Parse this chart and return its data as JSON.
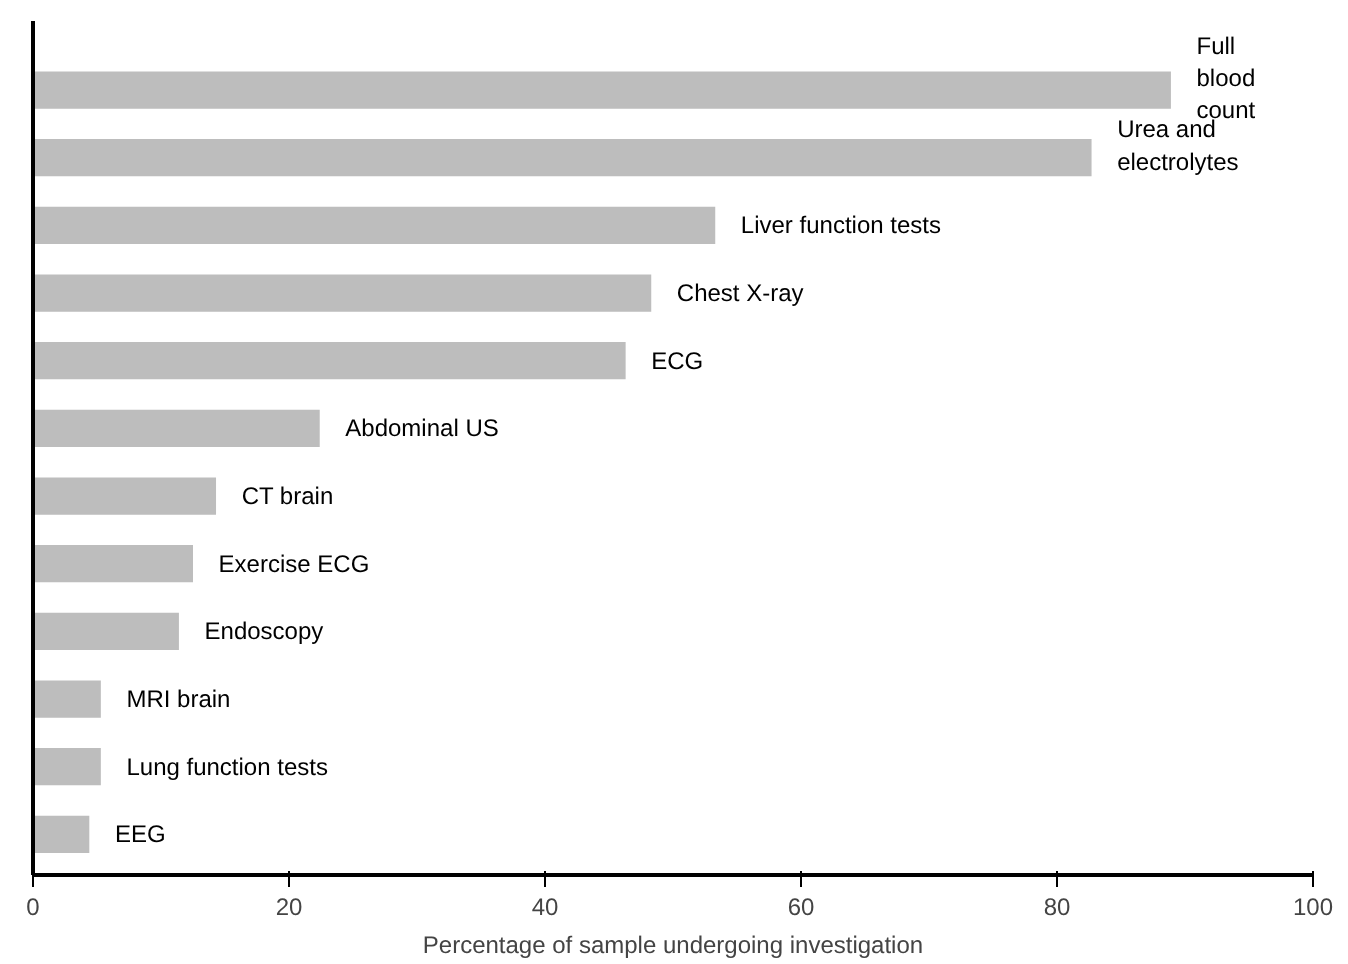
{
  "chart_data": {
    "type": "bar",
    "orientation": "horizontal",
    "xlabel": "Percentage of sample undergoing investigation",
    "categories": [
      "Full blood count",
      "Urea and electrolytes",
      "Liver function tests",
      "Chest X-ray",
      "ECG",
      "Abdominal US",
      "CT brain",
      "Exercise ECG",
      "Endoscopy",
      "MRI brain",
      "Lung function tests",
      "EEG"
    ],
    "values": [
      88.9,
      82.7,
      53.3,
      48.3,
      46.3,
      22.4,
      14.3,
      12.5,
      11.4,
      5.3,
      5.3,
      4.4
    ],
    "color": "#bdbdbd",
    "xlim": [
      0,
      100
    ],
    "xticks": [
      0,
      20,
      40,
      60,
      80,
      100
    ],
    "grid": false
  }
}
